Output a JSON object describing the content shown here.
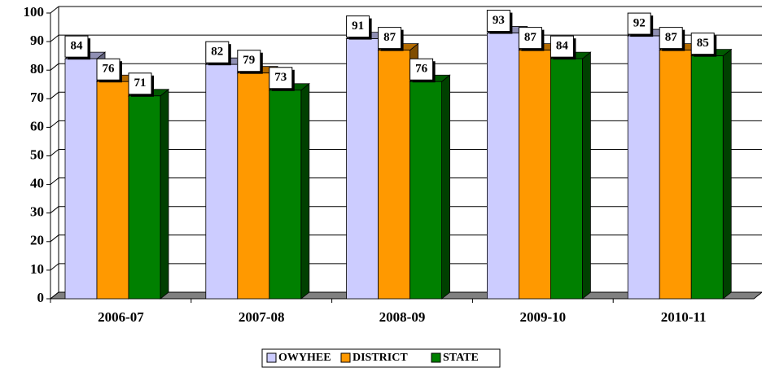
{
  "chart_data": {
    "type": "bar",
    "categories": [
      "2006-07",
      "2007-08",
      "2008-09",
      "2009-10",
      "2010-11"
    ],
    "series": [
      {
        "name": "OWYHEE",
        "color": "#ccccff",
        "values": [
          84,
          82,
          91,
          93,
          92
        ]
      },
      {
        "name": "DISTRICT",
        "color": "#ff9900",
        "values": [
          76,
          79,
          87,
          87,
          87
        ]
      },
      {
        "name": "STATE",
        "color": "#008000",
        "values": [
          71,
          73,
          76,
          84,
          85
        ]
      }
    ],
    "ylim": [
      0,
      100
    ],
    "yticks": [
      0,
      10,
      20,
      30,
      40,
      50,
      60,
      70,
      80,
      90,
      100
    ],
    "grid": true,
    "legend": "bottom"
  }
}
